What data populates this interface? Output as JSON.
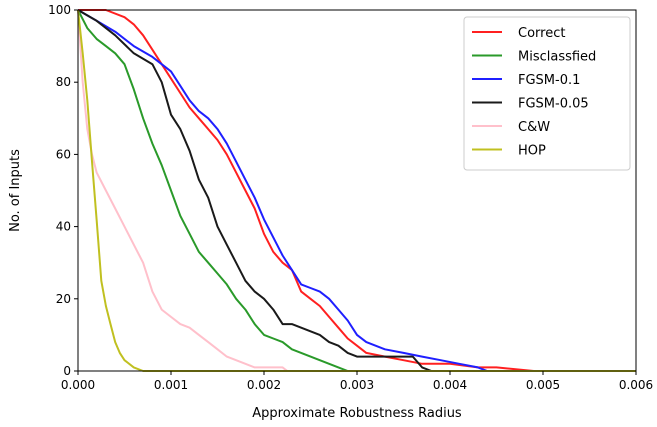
{
  "chart_data": {
    "type": "line",
    "title": "",
    "xlabel": "Approximate Robustness Radius",
    "ylabel": "No. of Inputs",
    "xlim": [
      0,
      0.006
    ],
    "ylim": [
      0,
      100
    ],
    "x_ticks": [
      0,
      0.001,
      0.002,
      0.003,
      0.004,
      0.005,
      0.006
    ],
    "x_tick_labels": [
      "0.000",
      "0.001",
      "0.002",
      "0.003",
      "0.004",
      "0.005",
      "0.006"
    ],
    "y_ticks": [
      0,
      20,
      40,
      60,
      80,
      100
    ],
    "y_tick_labels": [
      "0",
      "20",
      "40",
      "60",
      "80",
      "100"
    ],
    "grid": false,
    "legend_position": "top-right",
    "series": [
      {
        "name": "Correct",
        "color": "#ff2020",
        "x": [
          0,
          0.0003,
          0.0005,
          0.0006,
          0.0007,
          0.0008,
          0.0009,
          0.001,
          0.0011,
          0.0012,
          0.0013,
          0.0014,
          0.0015,
          0.0016,
          0.0017,
          0.0018,
          0.0019,
          0.002,
          0.0021,
          0.0022,
          0.0023,
          0.0024,
          0.0025,
          0.0026,
          0.0027,
          0.0028,
          0.0029,
          0.003,
          0.0031,
          0.0033,
          0.0035,
          0.0037,
          0.004,
          0.0043,
          0.0045,
          0.0049,
          0.006
        ],
        "y": [
          100,
          100,
          98,
          96,
          93,
          89,
          85,
          81,
          77,
          73,
          70,
          67,
          64,
          60,
          55,
          50,
          45,
          38,
          33,
          30,
          28,
          22,
          20,
          18,
          15,
          12,
          9,
          7,
          5,
          4,
          3,
          2,
          2,
          1,
          1,
          0,
          0
        ]
      },
      {
        "name": "Misclassfied",
        "color": "#2a9a2a",
        "x": [
          0,
          0.0001,
          0.0002,
          0.0003,
          0.0004,
          0.0005,
          0.0006,
          0.0007,
          0.0008,
          0.0009,
          0.001,
          0.0011,
          0.0012,
          0.0013,
          0.0014,
          0.0015,
          0.0016,
          0.0017,
          0.0018,
          0.0019,
          0.002,
          0.0021,
          0.0022,
          0.0023,
          0.0024,
          0.0025,
          0.0026,
          0.0027,
          0.0028,
          0.0029,
          0.003
        ],
        "y": [
          100,
          95,
          92,
          90,
          88,
          85,
          78,
          70,
          63,
          57,
          50,
          43,
          38,
          33,
          30,
          27,
          24,
          20,
          17,
          13,
          10,
          9,
          8,
          6,
          5,
          4,
          3,
          2,
          1,
          0,
          0
        ]
      },
      {
        "name": "FGSM-0.1",
        "color": "#1f1fff",
        "x": [
          0,
          0.0002,
          0.0004,
          0.0006,
          0.0008,
          0.001,
          0.0011,
          0.0012,
          0.0013,
          0.0014,
          0.0015,
          0.0016,
          0.0017,
          0.0018,
          0.0019,
          0.002,
          0.0021,
          0.0022,
          0.0023,
          0.0024,
          0.0025,
          0.0026,
          0.0027,
          0.0028,
          0.0029,
          0.003,
          0.0031,
          0.0032,
          0.0033,
          0.0035,
          0.0037,
          0.0039,
          0.0041,
          0.0043,
          0.0044,
          0.006
        ],
        "y": [
          100,
          97,
          94,
          90,
          87,
          83,
          79,
          75,
          72,
          70,
          67,
          63,
          58,
          53,
          48,
          42,
          37,
          32,
          28,
          24,
          23,
          22,
          20,
          17,
          14,
          10,
          8,
          7,
          6,
          5,
          4,
          3,
          2,
          1,
          0,
          0
        ]
      },
      {
        "name": "FGSM-0.05",
        "color": "#1a1a1a",
        "x": [
          0,
          0.0002,
          0.0004,
          0.0006,
          0.0008,
          0.0009,
          0.001,
          0.0011,
          0.0012,
          0.0013,
          0.0014,
          0.0015,
          0.0016,
          0.0017,
          0.0018,
          0.0019,
          0.002,
          0.0021,
          0.0022,
          0.0023,
          0.0024,
          0.0025,
          0.0026,
          0.0027,
          0.0028,
          0.0029,
          0.003,
          0.0032,
          0.0034,
          0.0036,
          0.0037,
          0.0038
        ],
        "y": [
          100,
          97,
          93,
          88,
          85,
          80,
          71,
          67,
          61,
          53,
          48,
          40,
          35,
          30,
          25,
          22,
          20,
          17,
          13,
          13,
          12,
          11,
          10,
          8,
          7,
          5,
          4,
          4,
          4,
          4,
          1,
          0
        ]
      },
      {
        "name": "C&W",
        "color": "#ffc0cb",
        "x": [
          0,
          5e-05,
          0.0001,
          0.00015,
          0.0002,
          0.0003,
          0.0004,
          0.0005,
          0.0006,
          0.0007,
          0.0008,
          0.0009,
          0.001,
          0.0011,
          0.0012,
          0.0013,
          0.0014,
          0.0015,
          0.0016,
          0.0017,
          0.0018,
          0.0019,
          0.002,
          0.0021,
          0.0022,
          0.00225
        ],
        "y": [
          100,
          80,
          67,
          60,
          55,
          50,
          45,
          40,
          35,
          30,
          22,
          17,
          15,
          13,
          12,
          10,
          8,
          6,
          4,
          3,
          2,
          1,
          1,
          1,
          1,
          0
        ]
      },
      {
        "name": "HOP",
        "color": "#c0c020",
        "x": [
          0,
          5e-05,
          0.0001,
          0.00015,
          0.0002,
          0.00025,
          0.0003,
          0.00035,
          0.0004,
          0.00045,
          0.0005,
          0.0006,
          0.0007,
          0.006
        ],
        "y": [
          100,
          88,
          75,
          58,
          42,
          25,
          18,
          13,
          8,
          5,
          3,
          1,
          0,
          0
        ]
      }
    ]
  }
}
